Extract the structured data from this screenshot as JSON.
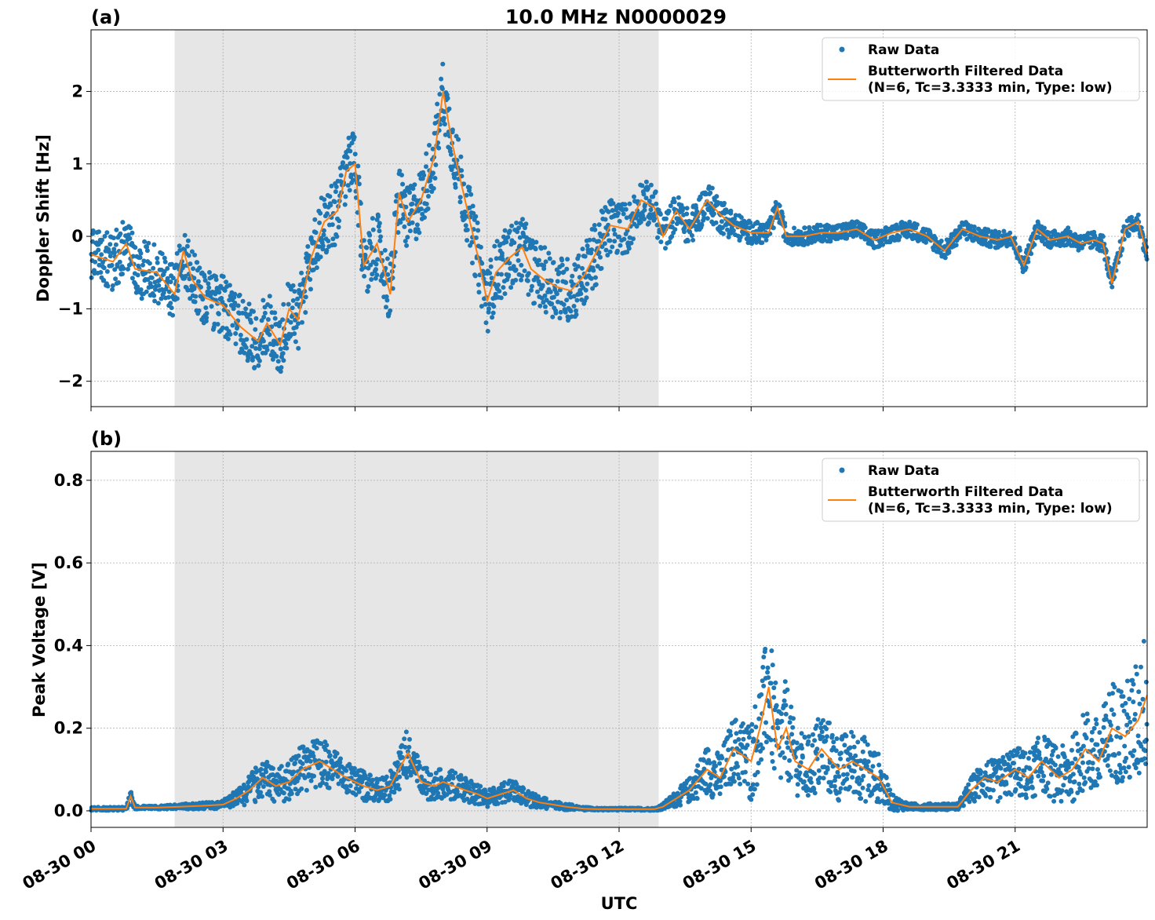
{
  "title": "10.0 MHz N0000029",
  "xlabel": "UTC",
  "x_tick_labels": [
    "08-30 00",
    "08-30 03",
    "08-30 06",
    "08-30 09",
    "08-30 12",
    "08-30 15",
    "08-30 18",
    "08-30 21"
  ],
  "shaded_interval_hours": [
    1.9,
    12.9
  ],
  "colors": {
    "raw": "#1f77b4",
    "filtered": "#ff7f0e",
    "shade": "#e6e6e6",
    "grid": "#b0b0b0"
  },
  "chart_data": [
    {
      "type": "scatter",
      "panel_label": "(a)",
      "ylabel": "Doppler Shift [Hz]",
      "xlim_hours": [
        0,
        24
      ],
      "ylim": [
        -2.35,
        2.85
      ],
      "y_ticks": [
        -2,
        -1,
        0,
        1,
        2
      ],
      "y_tick_labels": [
        "−2",
        "−1",
        "0",
        "1",
        "2"
      ],
      "grid": true,
      "legend_position": "upper right",
      "legend": [
        "Raw Data",
        "Butterworth Filtered Data",
        "(N=6, Tc=3.3333 min, Type: low)"
      ],
      "x": [
        0,
        0.5,
        0.8,
        1.0,
        1.5,
        1.9,
        2.1,
        2.3,
        2.6,
        3.0,
        3.4,
        3.8,
        4.0,
        4.3,
        4.5,
        4.7,
        5.0,
        5.3,
        5.6,
        5.8,
        6.0,
        6.2,
        6.5,
        6.8,
        7.0,
        7.2,
        7.5,
        7.8,
        8.0,
        8.2,
        8.5,
        8.8,
        9.0,
        9.2,
        9.5,
        9.8,
        10.0,
        10.3,
        10.6,
        10.9,
        11.2,
        11.5,
        11.8,
        12.2,
        12.5,
        12.8,
        13.0,
        13.3,
        13.6,
        14.0,
        14.3,
        14.6,
        15.0,
        15.4,
        15.6,
        15.8,
        16.2,
        16.6,
        17.0,
        17.4,
        17.8,
        18.2,
        18.6,
        19.0,
        19.4,
        19.8,
        20.2,
        20.6,
        20.9,
        21.2,
        21.5,
        21.8,
        22.2,
        22.5,
        22.8,
        23.0,
        23.2,
        23.5,
        23.8,
        24.0
      ],
      "series": [
        {
          "name": "Butterworth Filtered Data",
          "values": [
            -0.25,
            -0.35,
            -0.1,
            -0.45,
            -0.5,
            -0.8,
            -0.2,
            -0.6,
            -0.85,
            -0.95,
            -1.25,
            -1.45,
            -1.2,
            -1.5,
            -1.0,
            -1.15,
            -0.3,
            0.2,
            0.35,
            0.9,
            1.0,
            -0.4,
            -0.1,
            -0.8,
            0.6,
            0.2,
            0.5,
            1.1,
            2.0,
            1.3,
            0.5,
            -0.3,
            -0.9,
            -0.5,
            -0.3,
            -0.15,
            -0.45,
            -0.6,
            -0.7,
            -0.75,
            -0.55,
            -0.2,
            0.15,
            0.1,
            0.5,
            0.4,
            0.0,
            0.35,
            0.1,
            0.5,
            0.3,
            0.15,
            0.05,
            0.05,
            0.4,
            0.0,
            0.0,
            0.05,
            0.05,
            0.1,
            -0.05,
            0.05,
            0.1,
            0.0,
            -0.2,
            0.1,
            0.0,
            -0.05,
            0.0,
            -0.4,
            0.1,
            -0.05,
            0.0,
            -0.1,
            -0.05,
            -0.1,
            -0.65,
            0.1,
            0.2,
            -0.25
          ]
        },
        {
          "name": "Raw Data",
          "spread": [
            0.35,
            0.4,
            0.4,
            0.4,
            0.4,
            0.4,
            0.4,
            0.4,
            0.4,
            0.4,
            0.45,
            0.45,
            0.45,
            0.45,
            0.45,
            0.45,
            0.45,
            0.45,
            0.45,
            0.45,
            0.45,
            0.45,
            0.45,
            0.45,
            0.45,
            0.45,
            0.45,
            0.45,
            0.45,
            0.45,
            0.45,
            0.45,
            0.45,
            0.45,
            0.45,
            0.45,
            0.45,
            0.45,
            0.45,
            0.45,
            0.45,
            0.45,
            0.4,
            0.35,
            0.3,
            0.3,
            0.25,
            0.25,
            0.25,
            0.25,
            0.25,
            0.2,
            0.15,
            0.15,
            0.15,
            0.12,
            0.12,
            0.12,
            0.12,
            0.12,
            0.12,
            0.12,
            0.12,
            0.12,
            0.12,
            0.12,
            0.12,
            0.12,
            0.12,
            0.12,
            0.12,
            0.12,
            0.12,
            0.12,
            0.12,
            0.12,
            0.12,
            0.12,
            0.12,
            0.12
          ]
        }
      ]
    },
    {
      "type": "scatter",
      "panel_label": "(b)",
      "ylabel": "Peak Voltage [V]",
      "xlim_hours": [
        0,
        24
      ],
      "ylim": [
        -0.04,
        0.87
      ],
      "y_ticks": [
        0.0,
        0.2,
        0.4,
        0.6,
        0.8
      ],
      "y_tick_labels": [
        "0.0",
        "0.2",
        "0.4",
        "0.6",
        "0.8"
      ],
      "grid": true,
      "legend_position": "upper right",
      "legend": [
        "Raw Data",
        "Butterworth Filtered Data",
        "(N=6, Tc=3.3333 min, Type: low)"
      ],
      "x": [
        0,
        0.5,
        0.8,
        0.9,
        1.0,
        1.5,
        2.0,
        2.5,
        3.0,
        3.3,
        3.6,
        3.9,
        4.2,
        4.5,
        4.8,
        5.2,
        5.5,
        5.8,
        6.2,
        6.5,
        6.8,
        7.0,
        7.2,
        7.5,
        7.8,
        8.0,
        8.5,
        8.8,
        9.0,
        9.3,
        9.6,
        9.9,
        10.2,
        10.5,
        10.8,
        11.2,
        11.5,
        12.0,
        12.5,
        12.8,
        13.0,
        13.3,
        13.6,
        14.0,
        14.3,
        14.6,
        15.0,
        15.2,
        15.4,
        15.6,
        15.8,
        16.0,
        16.3,
        16.6,
        17.0,
        17.3,
        17.6,
        17.9,
        18.2,
        18.6,
        19.0,
        19.4,
        19.7,
        20.0,
        20.3,
        20.6,
        21.0,
        21.3,
        21.6,
        22.0,
        22.3,
        22.6,
        22.9,
        23.2,
        23.5,
        23.8,
        24.0
      ],
      "series": [
        {
          "name": "Butterworth Filtered Data",
          "values": [
            0.005,
            0.005,
            0.005,
            0.035,
            0.008,
            0.008,
            0.01,
            0.012,
            0.015,
            0.03,
            0.05,
            0.08,
            0.06,
            0.07,
            0.1,
            0.12,
            0.1,
            0.08,
            0.06,
            0.05,
            0.06,
            0.1,
            0.14,
            0.07,
            0.06,
            0.07,
            0.05,
            0.04,
            0.03,
            0.04,
            0.05,
            0.03,
            0.02,
            0.015,
            0.01,
            0.005,
            0.004,
            0.004,
            0.004,
            0.004,
            0.01,
            0.03,
            0.05,
            0.1,
            0.08,
            0.15,
            0.12,
            0.2,
            0.3,
            0.15,
            0.2,
            0.12,
            0.1,
            0.15,
            0.1,
            0.12,
            0.1,
            0.08,
            0.02,
            0.01,
            0.01,
            0.01,
            0.01,
            0.05,
            0.08,
            0.07,
            0.1,
            0.08,
            0.12,
            0.08,
            0.1,
            0.15,
            0.12,
            0.2,
            0.18,
            0.22,
            0.28
          ]
        },
        {
          "name": "Raw Data",
          "spread": [
            0.004,
            0.004,
            0.004,
            0.02,
            0.004,
            0.004,
            0.006,
            0.008,
            0.01,
            0.02,
            0.035,
            0.05,
            0.04,
            0.05,
            0.06,
            0.06,
            0.05,
            0.04,
            0.035,
            0.03,
            0.035,
            0.05,
            0.06,
            0.04,
            0.035,
            0.04,
            0.03,
            0.025,
            0.02,
            0.025,
            0.03,
            0.02,
            0.015,
            0.01,
            0.008,
            0.004,
            0.003,
            0.003,
            0.003,
            0.003,
            0.008,
            0.02,
            0.03,
            0.06,
            0.06,
            0.08,
            0.1,
            0.12,
            0.15,
            0.12,
            0.12,
            0.08,
            0.08,
            0.1,
            0.08,
            0.08,
            0.08,
            0.06,
            0.02,
            0.008,
            0.008,
            0.008,
            0.008,
            0.03,
            0.05,
            0.05,
            0.06,
            0.06,
            0.07,
            0.07,
            0.08,
            0.1,
            0.1,
            0.12,
            0.13,
            0.15,
            0.18
          ]
        }
      ]
    }
  ]
}
